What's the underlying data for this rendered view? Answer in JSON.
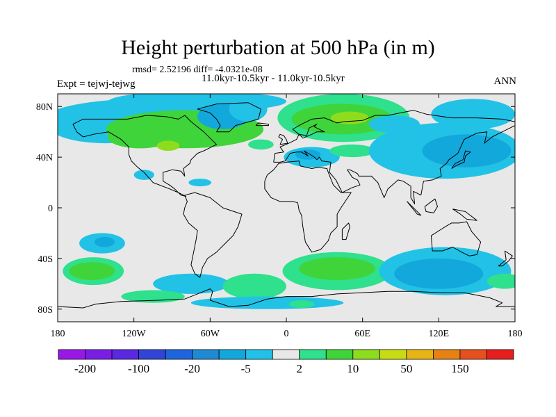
{
  "header": {
    "title": "Height perturbation at 500 hPa (in m)",
    "stats": "rmsd= 2.52196 diff= -4.0321e-08",
    "period": "11.0kyr-10.5kyr - 11.0kyr-10.5kyr",
    "expt": "Expt = tejwj-tejwg",
    "season": "ANN"
  },
  "chart_data": {
    "type": "heatmap",
    "title": "Height perturbation at 500 hPa (in m)",
    "projection": "cylindrical-equidistant",
    "xlim": [
      -180,
      180
    ],
    "ylim": [
      -90,
      90
    ],
    "x_ticks": [
      {
        "value": -180,
        "label": "180"
      },
      {
        "value": -120,
        "label": "120W"
      },
      {
        "value": -60,
        "label": "60W"
      },
      {
        "value": 0,
        "label": "0"
      },
      {
        "value": 60,
        "label": "60E"
      },
      {
        "value": 120,
        "label": "120E"
      },
      {
        "value": 180,
        "label": "180"
      }
    ],
    "y_ticks": [
      {
        "value": 80,
        "label": "80N"
      },
      {
        "value": 40,
        "label": "40N"
      },
      {
        "value": 0,
        "label": "0"
      },
      {
        "value": -40,
        "label": "40S"
      },
      {
        "value": -80,
        "label": "80S"
      }
    ],
    "colorbar": {
      "colors": [
        "#9a18e6",
        "#7a1ee6",
        "#5a28e0",
        "#3244d6",
        "#1e64dc",
        "#1e8ad4",
        "#12a8dc",
        "#22c2e6",
        "#e8e8e8",
        "#2fe08c",
        "#3fd43a",
        "#8edc1e",
        "#c8dc14",
        "#e6b414",
        "#e68214",
        "#e6501e",
        "#e61e1e"
      ],
      "label_slots": [
        1,
        3,
        5,
        7,
        9,
        11,
        13,
        15
      ],
      "labels": [
        "-200",
        "-100",
        "-20",
        "-5",
        "2",
        "10",
        "50",
        "150"
      ]
    },
    "regions": [
      {
        "lon": -142,
        "lat": 64,
        "rx": 44,
        "ry": 13,
        "level": "-5"
      },
      {
        "lon": -110,
        "lat": 70,
        "rx": 80,
        "ry": 16,
        "level": "-5"
      },
      {
        "lon": -70,
        "lat": 84,
        "rx": 70,
        "ry": 8,
        "level": "-5"
      },
      {
        "lon": -80,
        "lat": 62,
        "rx": 62,
        "ry": 15,
        "level": "10"
      },
      {
        "lon": -115,
        "lat": 56,
        "rx": 26,
        "ry": 9,
        "level": "10"
      },
      {
        "lon": -50,
        "lat": 72,
        "rx": 20,
        "ry": 10,
        "level": "-20"
      },
      {
        "lon": -93,
        "lat": 49,
        "rx": 9,
        "ry": 4,
        "level": "50"
      },
      {
        "lon": 45,
        "lat": 71,
        "rx": 52,
        "ry": 19,
        "level": "2"
      },
      {
        "lon": 44,
        "lat": 70,
        "rx": 40,
        "ry": 12,
        "level": "10"
      },
      {
        "lon": 50,
        "lat": 71,
        "rx": 15,
        "ry": 5,
        "level": "50"
      },
      {
        "lon": -30,
        "lat": 78,
        "rx": 15,
        "ry": 10,
        "level": "-5"
      },
      {
        "lon": -20,
        "lat": 50,
        "rx": 10,
        "ry": 4,
        "level": "2"
      },
      {
        "lon": 20,
        "lat": 40,
        "rx": 22,
        "ry": 8,
        "level": "-5"
      },
      {
        "lon": 17,
        "lat": 42,
        "rx": 10,
        "ry": 4,
        "level": "-20"
      },
      {
        "lon": 52,
        "lat": 45,
        "rx": 18,
        "ry": 5,
        "level": "2"
      },
      {
        "lon": 85,
        "lat": 66,
        "rx": 20,
        "ry": 7,
        "level": "-5"
      },
      {
        "lon": 147,
        "lat": 74,
        "rx": 33,
        "ry": 12,
        "level": "-5"
      },
      {
        "lon": 125,
        "lat": 45,
        "rx": 60,
        "ry": 22,
        "level": "-5"
      },
      {
        "lon": 142,
        "lat": 45,
        "rx": 35,
        "ry": 13,
        "level": "-20"
      },
      {
        "lon": -112,
        "lat": 26,
        "rx": 8,
        "ry": 4,
        "level": "-5"
      },
      {
        "lon": -68,
        "lat": 20,
        "rx": 9,
        "ry": 3,
        "level": "-5"
      },
      {
        "lon": -145,
        "lat": -28,
        "rx": 18,
        "ry": 8,
        "level": "-5"
      },
      {
        "lon": -143,
        "lat": -27,
        "rx": 8,
        "ry": 4,
        "level": "-20"
      },
      {
        "lon": -152,
        "lat": -50,
        "rx": 24,
        "ry": 11,
        "level": "2"
      },
      {
        "lon": -153,
        "lat": -50,
        "rx": 18,
        "ry": 7,
        "level": "10"
      },
      {
        "lon": -75,
        "lat": -60,
        "rx": 30,
        "ry": 8,
        "level": "-5"
      },
      {
        "lon": -25,
        "lat": -62,
        "rx": 25,
        "ry": 10,
        "level": "2"
      },
      {
        "lon": -105,
        "lat": -70,
        "rx": 25,
        "ry": 5,
        "level": "2"
      },
      {
        "lon": 40,
        "lat": -50,
        "rx": 43,
        "ry": 15,
        "level": "2"
      },
      {
        "lon": 40,
        "lat": -48,
        "rx": 30,
        "ry": 9,
        "level": "10"
      },
      {
        "lon": 125,
        "lat": -50,
        "rx": 52,
        "ry": 19,
        "level": "-5"
      },
      {
        "lon": 120,
        "lat": -52,
        "rx": 35,
        "ry": 12,
        "level": "-20"
      },
      {
        "lon": 172,
        "lat": -58,
        "rx": 14,
        "ry": 6,
        "level": "2"
      },
      {
        "lon": -15,
        "lat": -75,
        "rx": 60,
        "ry": 5,
        "level": "-5"
      },
      {
        "lon": 12,
        "lat": -76,
        "rx": 10,
        "ry": 3,
        "level": "2"
      }
    ]
  }
}
